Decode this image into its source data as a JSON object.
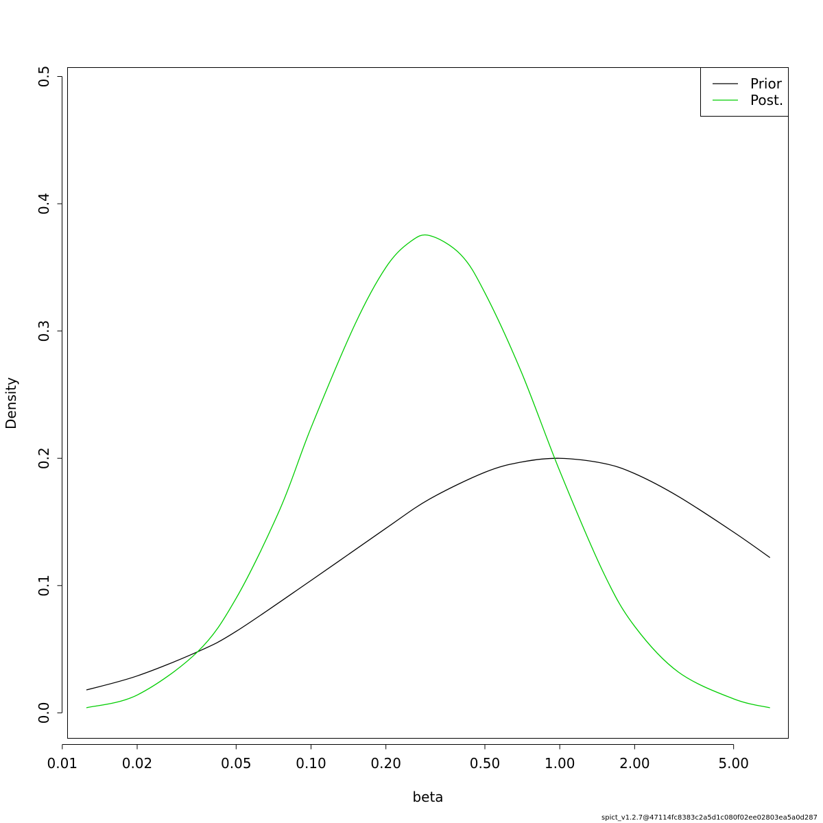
{
  "chart_data": {
    "type": "line",
    "xlabel": "beta",
    "ylabel": "Density",
    "x_scale": "log",
    "xlim": [
      0.0105,
      8.3
    ],
    "ylim": [
      -0.02,
      0.507
    ],
    "x_ticks": [
      0.01,
      0.02,
      0.05,
      0.1,
      0.2,
      0.5,
      1.0,
      2.0,
      5.0
    ],
    "x_tick_labels": [
      "0.01",
      "0.02",
      "0.05",
      "0.10",
      "0.20",
      "0.50",
      "1.00",
      "2.00",
      "5.00"
    ],
    "y_ticks": [
      0.0,
      0.1,
      0.2,
      0.3,
      0.4,
      0.5
    ],
    "y_tick_labels": [
      "0.0",
      "0.1",
      "0.2",
      "0.3",
      "0.4",
      "0.5"
    ],
    "grid": false,
    "legend_position": "top-right",
    "series": [
      {
        "name": "Prior",
        "color": "#000000",
        "x": [
          0.0125,
          0.02,
          0.035,
          0.05,
          0.1,
          0.2,
          0.3,
          0.5,
          0.7,
          1.0,
          1.5,
          2.0,
          3.0,
          5.0,
          7.0
        ],
        "y": [
          0.018,
          0.029,
          0.048,
          0.064,
          0.104,
          0.145,
          0.168,
          0.189,
          0.197,
          0.2,
          0.196,
          0.188,
          0.17,
          0.142,
          0.122
        ]
      },
      {
        "name": "Post.",
        "color": "#00cd00",
        "x": [
          0.0125,
          0.02,
          0.035,
          0.05,
          0.075,
          0.1,
          0.15,
          0.2,
          0.25,
          0.3,
          0.4,
          0.5,
          0.7,
          1.0,
          1.5,
          2.0,
          3.0,
          5.0,
          7.0
        ],
        "y": [
          0.004,
          0.014,
          0.048,
          0.09,
          0.16,
          0.224,
          0.305,
          0.35,
          0.37,
          0.375,
          0.36,
          0.33,
          0.268,
          0.19,
          0.11,
          0.068,
          0.032,
          0.011,
          0.004
        ]
      }
    ]
  },
  "footer": {
    "text": "spict_v1.2.7@47114fc8383c2a5d1c080f02ee02803ea5a0d287"
  }
}
